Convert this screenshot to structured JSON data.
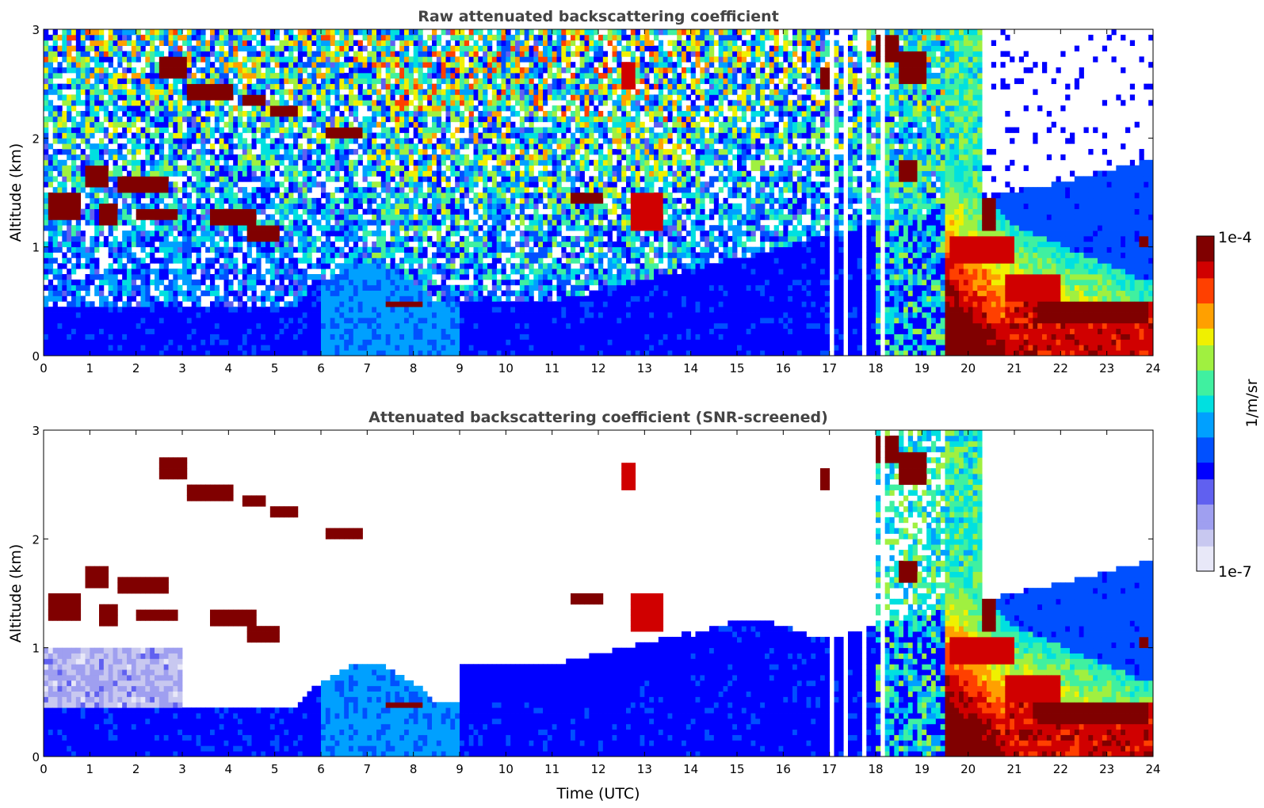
{
  "chart_data": [
    {
      "type": "heatmap",
      "title": "Raw attenuated backscattering coefficient",
      "ylabel": "Altitude (km)",
      "xlabel": "",
      "xlim": [
        0,
        24
      ],
      "ylim": [
        0,
        3
      ],
      "xticks": [
        0,
        1,
        2,
        3,
        4,
        5,
        6,
        7,
        8,
        9,
        10,
        11,
        12,
        13,
        14,
        15,
        16,
        17,
        18,
        19,
        20,
        21,
        22,
        23,
        24
      ],
      "yticks": [
        0,
        1,
        2,
        3
      ],
      "features": {
        "clouds": [
          {
            "t0": 2.55,
            "t1": 3.1,
            "z": 2.55,
            "h": 0.22,
            "level": 1.0
          },
          {
            "t0": 3.1,
            "t1": 4.1,
            "z": 2.35,
            "h": 0.14,
            "level": 1.0
          },
          {
            "t0": 4.3,
            "t1": 4.8,
            "z": 2.32,
            "h": 0.1,
            "level": 1.0
          },
          {
            "t0": 4.9,
            "t1": 5.5,
            "z": 2.22,
            "h": 0.1,
            "level": 1.0
          },
          {
            "t0": 6.1,
            "t1": 6.9,
            "z": 1.98,
            "h": 0.14,
            "level": 1.0
          },
          {
            "t0": 0.1,
            "t1": 0.75,
            "z": 1.25,
            "h": 0.25,
            "level": 0.95
          },
          {
            "t0": 0.9,
            "t1": 1.35,
            "z": 1.55,
            "h": 0.18,
            "level": 1.0
          },
          {
            "t0": 1.2,
            "t1": 1.6,
            "z": 1.22,
            "h": 0.18,
            "level": 0.95
          },
          {
            "t0": 1.6,
            "t1": 2.7,
            "z": 1.5,
            "h": 0.14,
            "level": 1.0
          },
          {
            "t0": 2.0,
            "t1": 2.9,
            "z": 1.25,
            "h": 0.1,
            "level": 0.95
          },
          {
            "t0": 3.6,
            "t1": 4.6,
            "z": 1.2,
            "h": 0.16,
            "level": 1.0
          },
          {
            "t0": 4.4,
            "t1": 5.1,
            "z": 1.05,
            "h": 0.14,
            "level": 1.0
          },
          {
            "t0": 7.4,
            "t1": 8.2,
            "z": 0.44,
            "h": 0.08,
            "level": 0.95
          },
          {
            "t0": 11.4,
            "t1": 12.1,
            "z": 1.38,
            "h": 0.14,
            "level": 1.0
          },
          {
            "t0": 12.7,
            "t1": 13.4,
            "z": 1.15,
            "h": 0.35,
            "level": 0.9
          },
          {
            "t0": 12.5,
            "t1": 12.8,
            "z": 2.45,
            "h": 0.25,
            "level": 0.9
          },
          {
            "t0": 16.8,
            "t1": 17.0,
            "z": 2.45,
            "h": 0.22,
            "level": 1.0
          },
          {
            "t0": 18.0,
            "t1": 18.5,
            "z": 2.7,
            "h": 0.25,
            "level": 1.0
          },
          {
            "t0": 18.5,
            "t1": 19.1,
            "z": 2.5,
            "h": 0.3,
            "level": 0.95
          },
          {
            "t0": 18.5,
            "t1": 18.9,
            "z": 1.62,
            "h": 0.16,
            "level": 1.0
          },
          {
            "t0": 19.6,
            "t1": 21.0,
            "z": 0.85,
            "h": 0.25,
            "level": 0.9
          },
          {
            "t0": 20.3,
            "t1": 20.6,
            "z": 1.15,
            "h": 0.3,
            "level": 0.95
          },
          {
            "t0": 20.8,
            "t1": 22.0,
            "z": 0.5,
            "h": 0.25,
            "level": 0.9
          },
          {
            "t0": 21.5,
            "t1": 23.9,
            "z": 0.3,
            "h": 0.2,
            "level": 0.95
          },
          {
            "t0": 23.7,
            "t1": 23.9,
            "z": 1.0,
            "h": 0.12,
            "level": 0.95
          }
        ],
        "gaps": [
          [
            17.05,
            17.12
          ],
          [
            17.3,
            17.42
          ],
          [
            17.55,
            17.65
          ],
          [
            17.72,
            17.8
          ],
          [
            18.1,
            18.18
          ]
        ]
      }
    },
    {
      "type": "heatmap",
      "title": "Attenuated backscattering coefficient (SNR-screened)",
      "ylabel": "Altitude (km)",
      "xlabel": "Time (UTC)",
      "xlim": [
        0,
        24
      ],
      "ylim": [
        0,
        3
      ],
      "xticks": [
        0,
        1,
        2,
        3,
        4,
        5,
        6,
        7,
        8,
        9,
        10,
        11,
        12,
        13,
        14,
        15,
        16,
        17,
        18,
        19,
        20,
        21,
        22,
        23,
        24
      ],
      "yticks": [
        0,
        1,
        2,
        3
      ]
    }
  ],
  "colorbar": {
    "label": "1/m/sr",
    "max_label": "1e-4",
    "min_label": "1e-7",
    "colors": [
      "#e8e8f8",
      "#c8c8f0",
      "#9f9ff0",
      "#6060f0",
      "#0000ff",
      "#0050ff",
      "#00a0ff",
      "#00e0e0",
      "#40f0a0",
      "#a0f040",
      "#f0f000",
      "#ffa000",
      "#ff4000",
      "#d00000",
      "#800000"
    ]
  }
}
